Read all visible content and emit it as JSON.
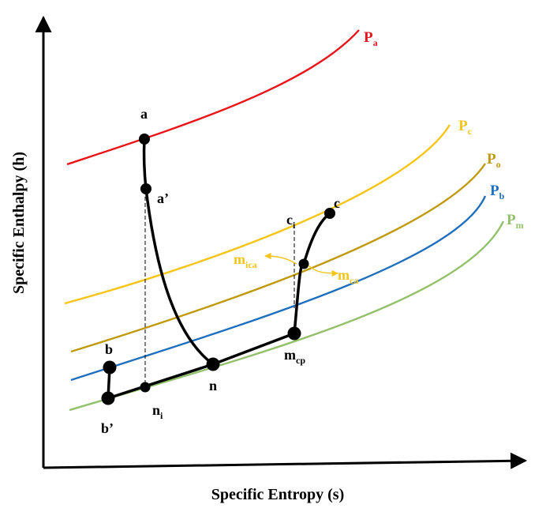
{
  "axes": {
    "x_title": "Specific Entropy (s)",
    "y_title": "Specific Enthalpy (h)"
  },
  "isobars": [
    {
      "key": "pa",
      "main": "P",
      "sub": "a",
      "color": "#e8161b"
    },
    {
      "key": "pc",
      "main": "P",
      "sub": "c",
      "color": "#f5c518"
    },
    {
      "key": "po",
      "main": "P",
      "sub": "o",
      "color": "#bf9a0f"
    },
    {
      "key": "pb",
      "main": "P",
      "sub": "b",
      "color": "#1f6fbd"
    },
    {
      "key": "pm",
      "main": "P",
      "sub": "m",
      "color": "#93c06a"
    }
  ],
  "points": {
    "a": {
      "main": "a",
      "sub": ""
    },
    "a_prime": {
      "main": "a’",
      "sub": ""
    },
    "n": {
      "main": "n",
      "sub": ""
    },
    "n_i": {
      "main": "n",
      "sub": "i"
    },
    "b": {
      "main": "b",
      "sub": ""
    },
    "b_prime": {
      "main": "b’",
      "sub": ""
    },
    "m_cp": {
      "main": "m",
      "sub": "cp"
    },
    "c": {
      "main": "c",
      "sub": ""
    },
    "c_i": {
      "main": "c",
      "sub": "i"
    }
  },
  "flow_labels": {
    "m_ica": {
      "main": "m",
      "sub": "ica",
      "color": "#f5c518"
    },
    "m_ca": {
      "main": "m",
      "sub": "ca",
      "color": "#f5c518"
    }
  },
  "colors": {
    "process": "#000000",
    "arrow": "#f5c518"
  }
}
